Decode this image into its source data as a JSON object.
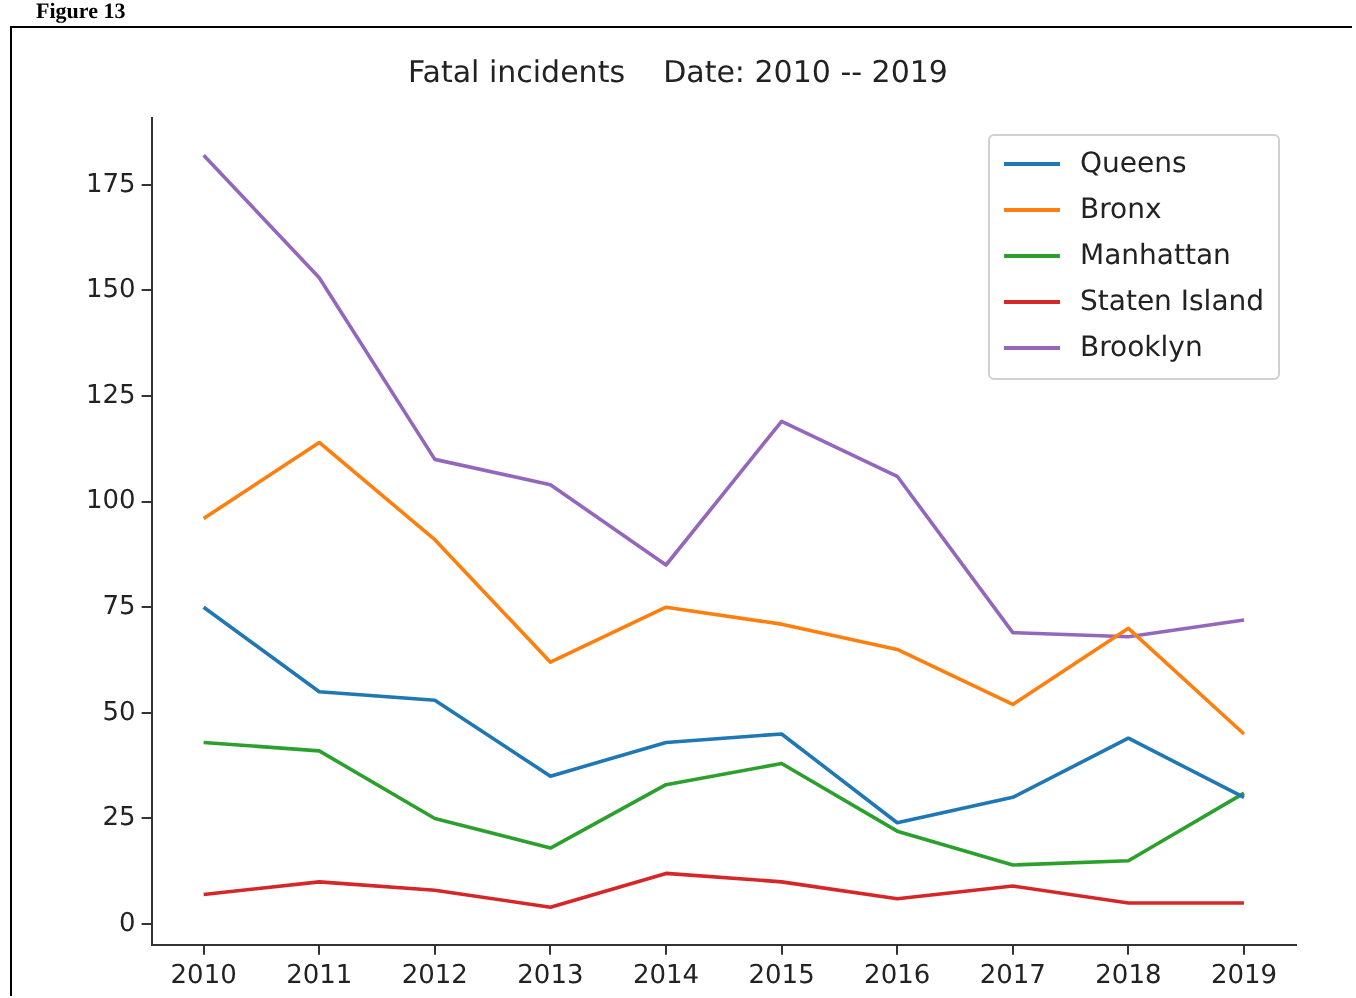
{
  "chart_data": {
    "type": "line",
    "title": "Fatal incidents    Date: 2010 -- 2019",
    "annotations": [
      "Figure 13"
    ],
    "x": [
      2010,
      2011,
      2012,
      2013,
      2014,
      2015,
      2016,
      2017,
      2018,
      2019
    ],
    "xlim": [
      2009.55,
      2019.45
    ],
    "xticks": [
      2010,
      2011,
      2012,
      2013,
      2014,
      2015,
      2016,
      2017,
      2018,
      2019
    ],
    "ylim": [
      -4.9,
      190.9
    ],
    "yticks": [
      0,
      25,
      50,
      75,
      100,
      125,
      150,
      175
    ],
    "legend": "top right",
    "grid": false,
    "marker": "none",
    "line_style": "solid",
    "series": [
      {
        "name": "Queens",
        "color": "#1f77b4",
        "values": [
          75,
          55,
          53,
          35,
          43,
          45,
          24,
          30,
          44,
          30
        ]
      },
      {
        "name": "Bronx",
        "color": "#ff7f0e",
        "values": [
          96,
          114,
          91,
          62,
          75,
          71,
          65,
          52,
          70,
          45
        ]
      },
      {
        "name": "Manhattan",
        "color": "#2ca02c",
        "values": [
          43,
          41,
          25,
          18,
          33,
          38,
          22,
          14,
          15,
          31
        ]
      },
      {
        "name": "Staten Island",
        "color": "#d62728",
        "values": [
          7,
          10,
          8,
          4,
          12,
          10,
          6,
          9,
          5,
          5
        ]
      },
      {
        "name": "Brooklyn",
        "color": "#9467bd",
        "values": [
          182,
          153,
          110,
          104,
          85,
          119,
          106,
          69,
          68,
          72
        ]
      }
    ]
  }
}
